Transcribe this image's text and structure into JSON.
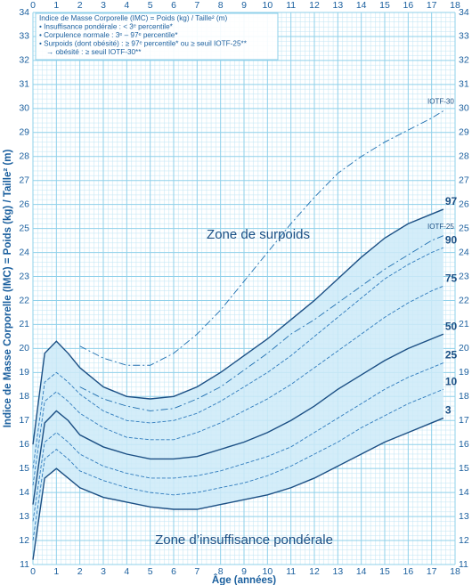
{
  "chart_data": {
    "type": "line",
    "y_label": "Indice de Masse Corporelle (IMC) = Poids (kg) / Taille² (m)",
    "x_label": "Âge (années)",
    "legend_lines": [
      "Indice de Masse Corporelle (IMC) = Poids (kg) / Taille² (m)",
      "• Insuffisance pondérale : < 3ᵉ percentile*",
      "• Corpulence normale : 3ᵉ – 97ᵉ percentile*",
      "• Surpoids (dont obésité) : ≥ 97ᵉ percentile* ou ≥ seuil IOTF-25**",
      "→ obésité : ≥ seuil IOTF-30**"
    ],
    "annotations": [
      "Zone de surpoids",
      "Zone d’insuffisance pondérale"
    ],
    "xlim": [
      0,
      18
    ],
    "ylim": [
      11,
      34
    ],
    "xticks": [
      0,
      1,
      2,
      3,
      4,
      5,
      6,
      7,
      8,
      9,
      10,
      11,
      12,
      13,
      14,
      15,
      16,
      17,
      18
    ],
    "yticks": [
      11,
      12,
      13,
      14,
      15,
      16,
      17,
      18,
      19,
      20,
      21,
      22,
      23,
      24,
      25,
      26,
      27,
      28,
      29,
      30,
      31,
      32,
      33,
      34
    ],
    "grid": true,
    "grid_color": "#8fd0ea",
    "band_color": "#cdeaf8",
    "x": [
      0,
      0.5,
      1,
      1.5,
      2,
      3,
      4,
      5,
      6,
      7,
      8,
      9,
      10,
      11,
      12,
      13,
      14,
      15,
      16,
      17,
      17.5
    ],
    "series": [
      {
        "name": "97",
        "color": "#1b4f84",
        "line_style": "solid",
        "values": [
          16,
          19.8,
          20.3,
          19.8,
          19.2,
          18.4,
          18.0,
          17.9,
          18.0,
          18.4,
          19.0,
          19.7,
          20.4,
          21.2,
          22.0,
          22.9,
          23.8,
          24.6,
          25.2,
          25.6,
          25.8
        ]
      },
      {
        "name": "90",
        "color": "#2f7bbd",
        "line_style": "dashed",
        "values": [
          15,
          18.6,
          19.0,
          18.6,
          18.1,
          17.4,
          17.0,
          16.9,
          17.0,
          17.3,
          17.8,
          18.4,
          19.0,
          19.7,
          20.5,
          21.3,
          22.1,
          22.9,
          23.5,
          24.0,
          24.2
        ]
      },
      {
        "name": "75",
        "color": "#2f7bbd",
        "line_style": "dashed",
        "values": [
          14.3,
          17.8,
          18.2,
          17.8,
          17.3,
          16.7,
          16.3,
          16.2,
          16.2,
          16.5,
          16.9,
          17.4,
          17.9,
          18.5,
          19.2,
          19.9,
          20.6,
          21.3,
          21.9,
          22.4,
          22.6
        ]
      },
      {
        "name": "50",
        "color": "#1b4f84",
        "line_style": "solid",
        "values": [
          13.5,
          16.9,
          17.4,
          17.0,
          16.4,
          15.9,
          15.6,
          15.4,
          15.4,
          15.5,
          15.8,
          16.1,
          16.5,
          17.0,
          17.6,
          18.3,
          18.9,
          19.5,
          20.0,
          20.4,
          20.6
        ]
      },
      {
        "name": "25",
        "color": "#2f7bbd",
        "line_style": "dashed",
        "values": [
          12.8,
          16.1,
          16.5,
          16.1,
          15.6,
          15.1,
          14.8,
          14.6,
          14.6,
          14.7,
          14.9,
          15.2,
          15.5,
          15.9,
          16.5,
          17.1,
          17.7,
          18.3,
          18.8,
          19.2,
          19.4
        ]
      },
      {
        "name": "10",
        "color": "#2f7bbd",
        "line_style": "dashed",
        "values": [
          12,
          15.4,
          15.8,
          15.4,
          14.9,
          14.5,
          14.2,
          14.0,
          13.9,
          14.0,
          14.2,
          14.4,
          14.7,
          15.1,
          15.6,
          16.1,
          16.7,
          17.2,
          17.7,
          18.1,
          18.3
        ]
      },
      {
        "name": "3",
        "color": "#1b4f84",
        "line_style": "solid",
        "values": [
          11.2,
          14.6,
          15.0,
          14.6,
          14.2,
          13.8,
          13.6,
          13.4,
          13.3,
          13.3,
          13.5,
          13.7,
          13.9,
          14.2,
          14.6,
          15.1,
          15.6,
          16.1,
          16.5,
          16.9,
          17.1
        ]
      },
      {
        "name": "IOTF-25",
        "color": "#1f6fb0",
        "line_style": "longdash",
        "values": [
          null,
          null,
          null,
          null,
          18.4,
          17.9,
          17.6,
          17.4,
          17.5,
          17.9,
          18.4,
          19.1,
          19.8,
          20.6,
          21.2,
          21.9,
          22.6,
          23.3,
          23.9,
          24.5,
          24.7
        ]
      },
      {
        "name": "IOTF-30",
        "color": "#1f6fb0",
        "line_style": "longdash",
        "values": [
          null,
          null,
          null,
          null,
          20.1,
          19.6,
          19.3,
          19.3,
          19.8,
          20.6,
          21.6,
          22.8,
          24.0,
          25.2,
          26.3,
          27.3,
          28.0,
          28.6,
          29.1,
          29.6,
          29.9
        ]
      }
    ]
  }
}
